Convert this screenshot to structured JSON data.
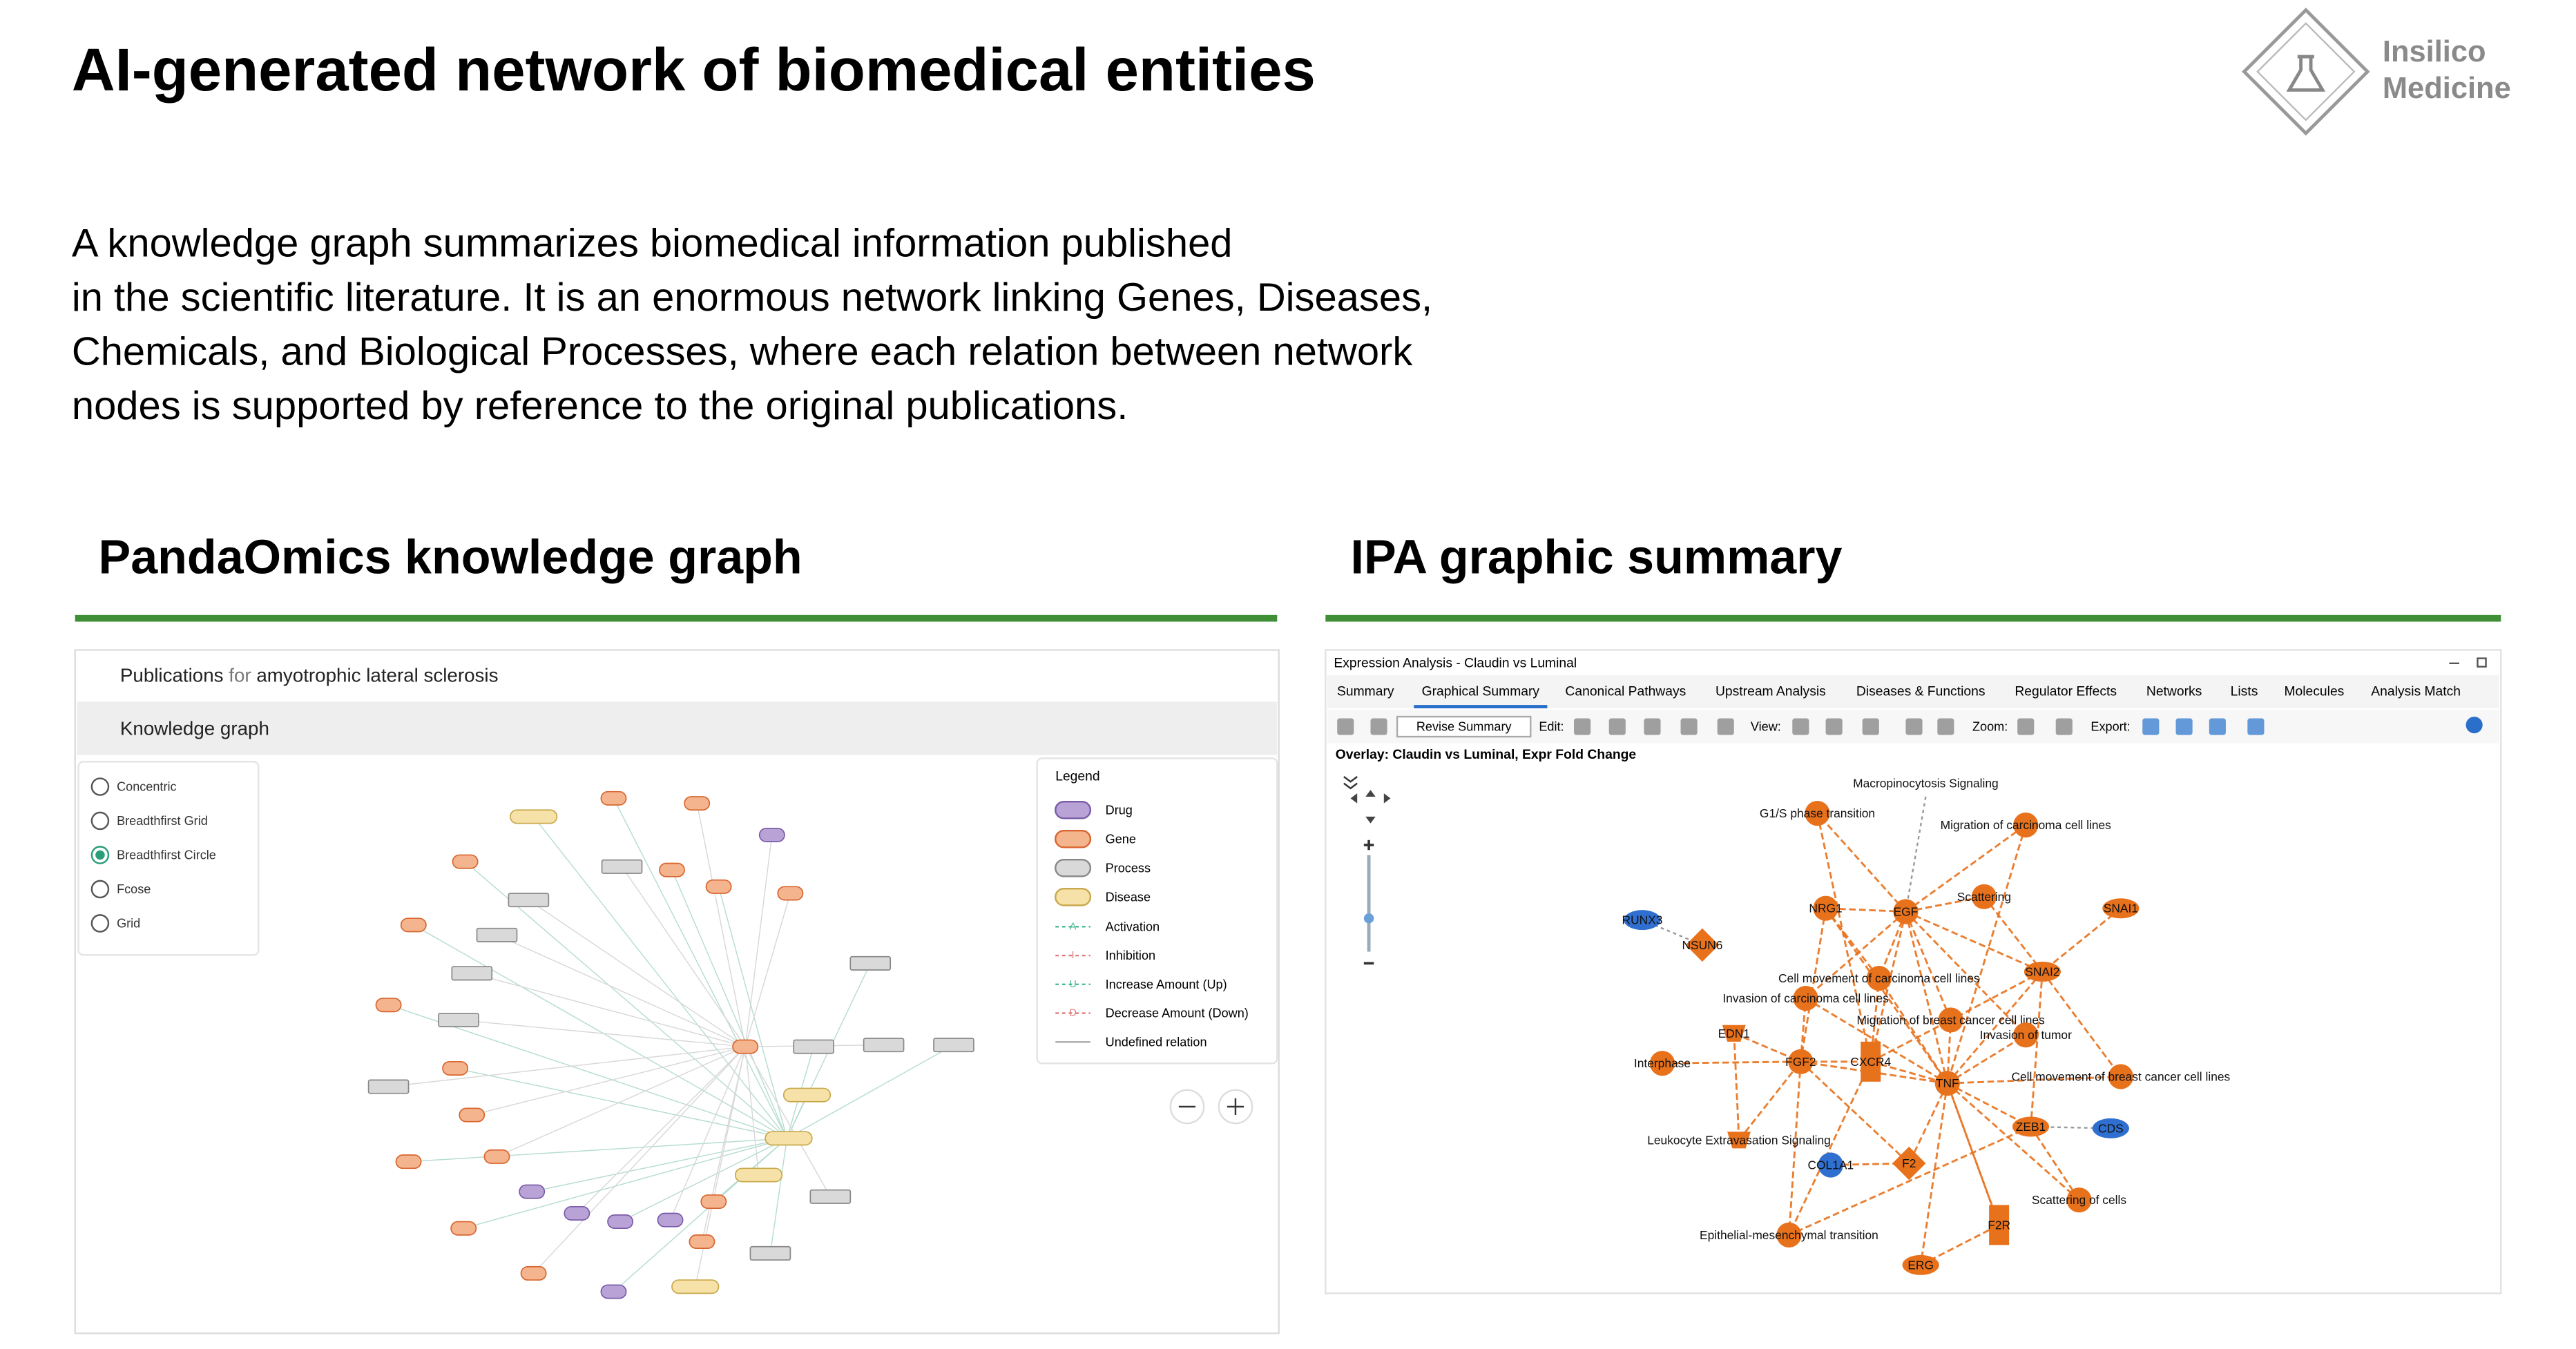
{
  "header": {
    "title": "AI-generated network of biomedical entities",
    "logo": [
      "Insilico",
      "Medicine"
    ]
  },
  "body": {
    "lines": [
      "A knowledge graph summarizes biomedical information published",
      "in the scientific literature. It is an enormous network linking Genes, Diseases,",
      "Chemicals, and Biological Processes, where each relation between network",
      "nodes is supported by reference to the original publications."
    ]
  },
  "left": {
    "heading": "PandaOmics knowledge graph",
    "publications": [
      "Publications",
      "for",
      "amyotrophic lateral sclerosis"
    ],
    "tab": "Knowledge graph",
    "layouts": [
      "Concentric",
      "Breadthfirst Grid",
      "Breadthfirst Circle",
      "Fcose",
      "Grid"
    ],
    "legend": {
      "title": "Legend",
      "nodes": [
        "Drug",
        "Gene",
        "Process",
        "Disease"
      ],
      "edges": [
        {
          "letter": "A",
          "label": "Activation"
        },
        {
          "letter": "I",
          "label": "Inhibition"
        },
        {
          "letter": "U",
          "label": "Increase Amount (Up)"
        },
        {
          "letter": "D",
          "label": "Decrease Amount (Down)"
        },
        {
          "letter": "",
          "label": "Undefined relation"
        }
      ]
    }
  },
  "right": {
    "heading": "IPA graphic summary",
    "window_title": "Expression Analysis - Claudin vs Luminal",
    "tabs": [
      "Summary",
      "Graphical Summary",
      "Canonical Pathways",
      "Upstream Analysis",
      "Diseases & Functions",
      "Regulator Effects",
      "Networks",
      "Lists",
      "Molecules",
      "Analysis Match"
    ],
    "toolbar": [
      "Revise Summary",
      "Edit:",
      "View:",
      "Zoom:",
      "Export:"
    ],
    "overlay": "Overlay: Claudin vs Luminal, Expr Fold Change",
    "nodes": [
      "Macropinocytosis Signaling",
      "G1/S phase transition",
      "Migration of carcinoma cell lines",
      "RUNX3",
      "NSUN6",
      "NRG1",
      "EGF",
      "Scattering",
      "SNAI1",
      "Cell movement of carcinoma cell lines",
      "SNAI2",
      "Invasion of carcinoma cell lines",
      "Migration of breast cancer cell lines",
      "EDN1",
      "Invasion of tumor",
      "Interphase",
      "FGF2",
      "CXCR4",
      "TNF",
      "Cell movement of breast cancer cell lines",
      "Leukocyte Extravasation Signaling",
      "ZEB1",
      "CDS",
      "COL1A1",
      "F2",
      "Scattering of cells",
      "F2R",
      "Epithelial-mesenchymal transition",
      "ERG"
    ]
  }
}
